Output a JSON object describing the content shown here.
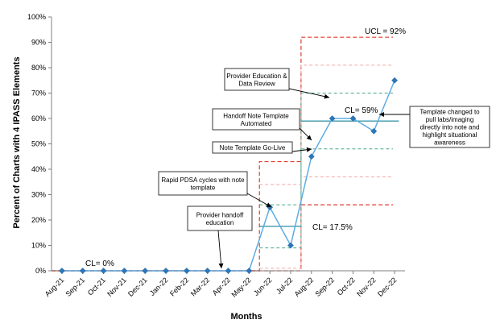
{
  "chart_data": {
    "type": "line",
    "title": "",
    "xlabel": "Months",
    "ylabel": "Percent of Charts with 4 IPASS Elements",
    "categories": [
      "Aug-21",
      "Sep-21",
      "Oct-21",
      "Nov-21",
      "Dec-21",
      "Jan-22",
      "Feb-22",
      "Mar-22",
      "Apr-22",
      "May-22",
      "Jun-22",
      "Jul-22",
      "Aug-22",
      "Sep-22",
      "Oct-22",
      "Nov-22",
      "Dec-22"
    ],
    "y_ticks": [
      "0%",
      "10%",
      "20%",
      "30%",
      "40%",
      "50%",
      "60%",
      "70%",
      "80%",
      "90%",
      "100%"
    ],
    "ylim": [
      0,
      100
    ],
    "grid": false,
    "series": [
      {
        "values": [
          0,
          0,
          0,
          0,
          0,
          0,
          0,
          0,
          0,
          0,
          25,
          10,
          45,
          60,
          60,
          55,
          75
        ],
        "color": "#2e75b6"
      }
    ],
    "center_line": {
      "segments": [
        {
          "from": 0,
          "to": 9,
          "value": 0
        },
        {
          "from": 10,
          "to": 11,
          "value": 17.5
        },
        {
          "from": 12,
          "to": 16,
          "value": 59
        }
      ],
      "color": "#5b9bd5"
    },
    "control_limits": {
      "color": "#e03c31",
      "upper": [
        0,
        0,
        0,
        0,
        0,
        0,
        0,
        0,
        0,
        0,
        43,
        43,
        92,
        92,
        92,
        92,
        92
      ],
      "lower": [
        0,
        0,
        0,
        0,
        0,
        0,
        0,
        0,
        0,
        0,
        0,
        0,
        26,
        26,
        26,
        26,
        26
      ]
    },
    "sigma_lines": {
      "upper_2": [
        null,
        null,
        null,
        null,
        null,
        null,
        null,
        null,
        null,
        null,
        34,
        34,
        81,
        81,
        81,
        81,
        81
      ],
      "upper_1": [
        null,
        null,
        null,
        null,
        null,
        null,
        null,
        null,
        null,
        null,
        26,
        26,
        70,
        70,
        70,
        70,
        70
      ],
      "lower_1": [
        null,
        null,
        null,
        null,
        null,
        null,
        null,
        null,
        null,
        null,
        9,
        9,
        48,
        48,
        48,
        48,
        48
      ],
      "lower_2": [
        null,
        null,
        null,
        null,
        null,
        null,
        null,
        null,
        null,
        null,
        1,
        1,
        37,
        37,
        37,
        37,
        37
      ]
    },
    "labels": {
      "ucl": "UCL = 92%",
      "cl_baseline": "CL= 0%",
      "cl_phase2": "CL= 17.5%",
      "cl_phase3": "CL= 59%"
    },
    "annotations": [
      {
        "lines": [
          "Provider handoff",
          "education"
        ],
        "target_index": 8
      },
      {
        "lines": [
          "Rapid PDSA cycles with note",
          "template"
        ],
        "target_index": 11
      },
      {
        "lines": [
          "Note Template Go-Live"
        ],
        "target_index": 12
      },
      {
        "lines": [
          "Handoff Note Template",
          "Automated"
        ],
        "target_index": 12
      },
      {
        "lines": [
          "Provider Education &",
          "Data Review"
        ],
        "target_index": 13
      },
      {
        "lines": [
          "Template changed to",
          "pull labs/imaging",
          "directly into note and",
          "highlight situational",
          "awareness"
        ],
        "target_index": 15
      }
    ]
  }
}
